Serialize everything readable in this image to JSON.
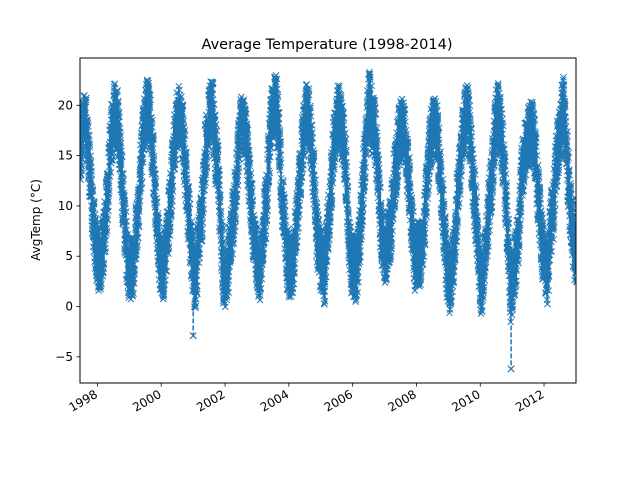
{
  "chart_data": {
    "type": "line",
    "title": "Average Temperature (1998-2014)",
    "xlabel": "",
    "ylabel": "AvgTemp (°C)",
    "x_range": [
      "1997-06-15",
      "2013-01-01"
    ],
    "ylim": [
      -7.6,
      24.7
    ],
    "x_ticks": [
      {
        "date": "1998-01-01",
        "label": "1998"
      },
      {
        "date": "2000-01-01",
        "label": "2000"
      },
      {
        "date": "2002-01-01",
        "label": "2002"
      },
      {
        "date": "2004-01-01",
        "label": "2004"
      },
      {
        "date": "2006-01-01",
        "label": "2006"
      },
      {
        "date": "2008-01-01",
        "label": "2008"
      },
      {
        "date": "2010-01-01",
        "label": "2010"
      },
      {
        "date": "2012-01-01",
        "label": "2012"
      }
    ],
    "y_ticks": [
      -5,
      0,
      5,
      10,
      15,
      20
    ],
    "grid": false,
    "legend": "none",
    "series": [
      {
        "marker": "x",
        "line_style": "dashed",
        "color": "#1f77b4",
        "sampling": "weekly average (approx.) of daily values",
        "x": [
          "1997-06-15",
          "1997-07-15",
          "1997-08-15",
          "1997-09-15",
          "1997-10-15",
          "1997-11-15",
          "1997-12-15",
          "1998-01-15",
          "1998-02-15",
          "1998-03-15",
          "1998-04-15",
          "1998-05-15",
          "1998-06-15",
          "1998-07-15",
          "1998-08-15",
          "1998-09-15",
          "1998-10-15",
          "1998-11-15",
          "1998-12-15",
          "1999-01-15",
          "1999-02-15",
          "1999-03-15",
          "1999-04-15",
          "1999-05-15",
          "1999-06-15",
          "1999-07-15",
          "1999-08-15",
          "1999-09-15",
          "1999-10-15",
          "1999-11-15",
          "1999-12-15",
          "2000-01-15",
          "2000-02-15",
          "2000-03-15",
          "2000-04-15",
          "2000-05-15",
          "2000-06-15",
          "2000-07-15",
          "2000-08-15",
          "2000-09-15",
          "2000-10-15",
          "2000-11-15",
          "2000-12-15",
          "2001-01-15",
          "2001-02-15",
          "2001-03-15",
          "2001-04-15",
          "2001-05-15",
          "2001-06-15",
          "2001-07-15",
          "2001-08-15",
          "2001-09-15",
          "2001-10-15",
          "2001-11-15",
          "2001-12-15",
          "2002-01-15",
          "2002-02-15",
          "2002-03-15",
          "2002-04-15",
          "2002-05-15",
          "2002-06-15",
          "2002-07-15",
          "2002-08-15",
          "2002-09-15",
          "2002-10-15",
          "2002-11-15",
          "2002-12-15",
          "2003-01-15",
          "2003-02-15",
          "2003-03-15",
          "2003-04-15",
          "2003-05-15",
          "2003-06-15",
          "2003-07-15",
          "2003-08-15",
          "2003-09-15",
          "2003-10-15",
          "2003-11-15",
          "2003-12-15",
          "2004-01-15",
          "2004-02-15",
          "2004-03-15",
          "2004-04-15",
          "2004-05-15",
          "2004-06-15",
          "2004-07-15",
          "2004-08-15",
          "2004-09-15",
          "2004-10-15",
          "2004-11-15",
          "2004-12-15",
          "2005-01-15",
          "2005-02-15",
          "2005-03-15",
          "2005-04-15",
          "2005-05-15",
          "2005-06-15",
          "2005-07-15",
          "2005-08-15",
          "2005-09-15",
          "2005-10-15",
          "2005-11-15",
          "2005-12-15",
          "2006-01-15",
          "2006-02-15",
          "2006-03-15",
          "2006-04-15",
          "2006-05-15",
          "2006-06-15",
          "2006-07-15",
          "2006-08-15",
          "2006-09-15",
          "2006-10-15",
          "2006-11-15",
          "2006-12-15",
          "2007-01-15",
          "2007-02-15",
          "2007-03-15",
          "2007-04-15",
          "2007-05-15",
          "2007-06-15",
          "2007-07-15",
          "2007-08-15",
          "2007-09-15",
          "2007-10-15",
          "2007-11-15",
          "2007-12-15",
          "2008-01-15",
          "2008-02-15",
          "2008-03-15",
          "2008-04-15",
          "2008-05-15",
          "2008-06-15",
          "2008-07-15",
          "2008-08-15",
          "2008-09-15",
          "2008-10-15",
          "2008-11-15",
          "2008-12-15",
          "2009-01-15",
          "2009-02-15",
          "2009-03-15",
          "2009-04-15",
          "2009-05-15",
          "2009-06-15",
          "2009-07-15",
          "2009-08-15",
          "2009-09-15",
          "2009-10-15",
          "2009-11-15",
          "2009-12-15",
          "2010-01-15",
          "2010-02-15",
          "2010-03-15",
          "2010-04-15",
          "2010-05-15",
          "2010-06-15",
          "2010-07-15",
          "2010-08-15",
          "2010-09-15",
          "2010-10-15",
          "2010-11-15",
          "2010-12-15",
          "2011-01-15",
          "2011-02-15",
          "2011-03-15",
          "2011-04-15",
          "2011-05-15",
          "2011-06-15",
          "2011-07-15",
          "2011-08-15",
          "2011-09-15",
          "2011-10-15",
          "2011-11-15",
          "2011-12-15",
          "2012-01-15",
          "2012-02-15",
          "2012-03-15",
          "2012-04-15",
          "2012-05-15",
          "2012-06-15",
          "2012-07-15",
          "2012-08-15",
          "2012-09-15",
          "2012-10-15",
          "2012-11-15",
          "2012-12-15"
        ],
        "y": [
          14.5,
          17.8,
          19.2,
          16.0,
          12.1,
          8.3,
          6.0,
          4.8,
          4.5,
          6.9,
          9.8,
          13.9,
          17.2,
          19.3,
          18.7,
          15.4,
          11.6,
          7.4,
          4.2,
          3.9,
          4.1,
          7.3,
          10.0,
          14.4,
          17.5,
          19.8,
          19.5,
          16.7,
          12.3,
          7.3,
          4.8,
          3.6,
          4.7,
          7.2,
          10.6,
          14.3,
          17.6,
          18.9,
          19.2,
          15.9,
          12.2,
          8.4,
          5.6,
          2.6,
          3.9,
          7.8,
          9.6,
          14.8,
          17.2,
          19.6,
          19.4,
          15.2,
          13.5,
          7.4,
          3.0,
          3.0,
          4.7,
          7.2,
          9.6,
          13.3,
          16.9,
          18.3,
          18.3,
          15.2,
          11.8,
          8.2,
          5.7,
          4.0,
          3.5,
          7.6,
          10.0,
          14.6,
          18.5,
          19.5,
          19.8,
          16.1,
          11.1,
          8.0,
          4.5,
          3.9,
          4.1,
          6.5,
          10.3,
          13.7,
          17.2,
          18.8,
          19.5,
          16.3,
          12.4,
          7.5,
          5.0,
          4.3,
          3.3,
          7.1,
          10.0,
          14.0,
          17.8,
          19.2,
          18.6,
          16.5,
          13.6,
          7.6,
          4.3,
          3.7,
          3.6,
          6.1,
          10.0,
          14.3,
          18.2,
          21.0,
          17.9,
          17.2,
          13.9,
          8.6,
          6.2,
          5.3,
          6.5,
          7.8,
          12.2,
          13.9,
          16.8,
          17.5,
          17.6,
          14.7,
          11.8,
          7.6,
          4.7,
          5.5,
          5.0,
          6.7,
          9.7,
          14.5,
          16.8,
          18.3,
          18.2,
          14.9,
          11.7,
          7.6,
          3.9,
          2.4,
          3.8,
          6.5,
          11.1,
          14.0,
          16.8,
          18.6,
          19.1,
          15.9,
          11.8,
          9.1,
          4.8,
          1.9,
          3.4,
          6.7,
          10.4,
          12.8,
          17.3,
          19.5,
          18.0,
          15.4,
          11.4,
          6.9,
          1.6,
          2.9,
          4.8,
          7.2,
          12.4,
          14.5,
          16.3,
          16.8,
          17.5,
          16.0,
          12.2,
          9.3,
          5.8,
          4.6,
          2.8,
          8.4,
          9.0,
          14.3,
          16.4,
          18.1,
          19.8,
          15.3,
          11.6,
          7.9,
          5.6
        ]
      }
    ],
    "annotations": [],
    "extremes": [
      {
        "x": "2006-07-19",
        "y": 22.8
      },
      {
        "x": "2012-07-24",
        "y": 22.0
      },
      {
        "x": "2001-01-01",
        "y": -2.9
      },
      {
        "x": "2010-12-20",
        "y": -6.2
      }
    ]
  }
}
